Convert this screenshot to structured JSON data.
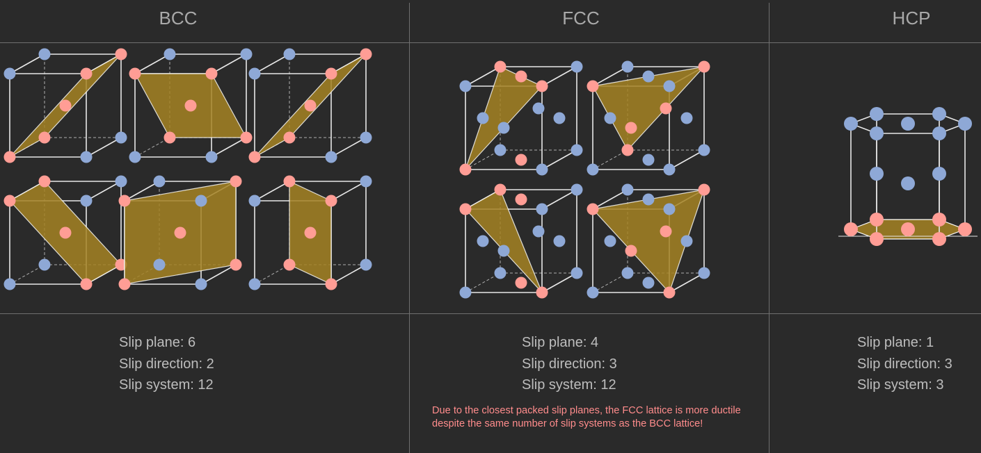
{
  "columns": [
    {
      "header": "BCC",
      "stats": [
        "Slip plane: 6",
        "Slip direction: 2",
        "Slip system: 12"
      ]
    },
    {
      "header": "FCC",
      "stats": [
        "Slip plane: 4",
        "Slip direction: 3",
        "Slip system: 12"
      ],
      "note": "Due to the closest packed slip planes, the FCC lattice is more ductile despite the same number of slip systems as the BCC lattice!"
    },
    {
      "header": "HCP",
      "stats": [
        "Slip plane: 1",
        "Slip direction: 3",
        "Slip system: 3"
      ]
    }
  ],
  "colors": {
    "background": "#2a2a2a",
    "divider": "#6f6f6f",
    "header_text": "#a9a9a9",
    "stat_text": "#bdbdbd",
    "note_text": "#ff8c8c",
    "atom_blue": "#8ea8d6",
    "atom_pink": "#ff9d95",
    "slip_plane_fill": "#a48323",
    "lattice_edge": "#e8e8e8"
  }
}
